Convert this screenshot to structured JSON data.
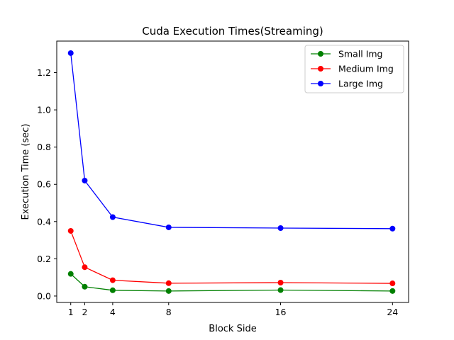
{
  "chart_data": {
    "type": "line",
    "title": "Cuda Execution Times(Streaming)",
    "xlabel": "Block Side",
    "ylabel": "Execution Time (sec)",
    "x": [
      1,
      2,
      4,
      8,
      16,
      24
    ],
    "xticks": [
      1,
      2,
      4,
      8,
      16,
      24
    ],
    "xtick_labels": [
      "1",
      "2",
      "4",
      "8",
      "16",
      "24"
    ],
    "yticks": [
      0.0,
      0.2,
      0.4,
      0.6,
      0.8,
      1.0,
      1.2
    ],
    "ytick_labels": [
      "0.0",
      "0.2",
      "0.4",
      "0.6",
      "0.8",
      "1.0",
      "1.2"
    ],
    "xlim": [
      0.0,
      25.15
    ],
    "ylim": [
      -0.0345,
      1.3695
    ],
    "grid": false,
    "legend_position": "top-right",
    "series": [
      {
        "name": "Small Img",
        "color": "#008000",
        "values": [
          0.119,
          0.05,
          0.031,
          0.027,
          0.032,
          0.027
        ]
      },
      {
        "name": "Medium Img",
        "color": "#ff0000",
        "values": [
          0.35,
          0.155,
          0.085,
          0.069,
          0.072,
          0.068
        ]
      },
      {
        "name": "Large Img",
        "color": "#0000ff",
        "values": [
          1.305,
          0.62,
          0.424,
          0.369,
          0.365,
          0.362
        ]
      }
    ]
  }
}
